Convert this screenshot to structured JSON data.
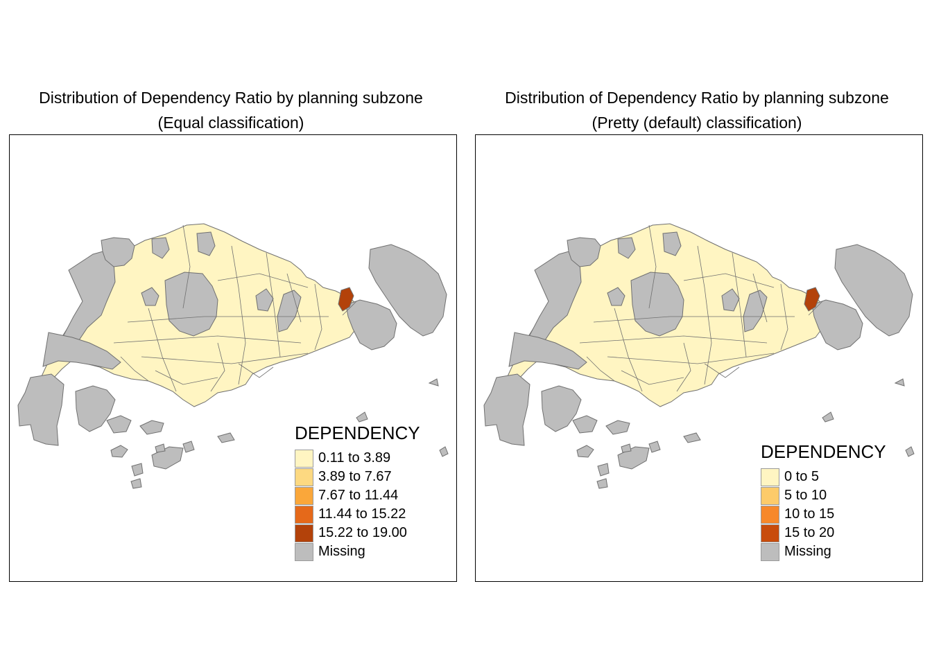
{
  "panels": [
    {
      "title_line1": "Distribution of Dependency Ratio by planning subzone",
      "title_line2": "(Equal classification)",
      "legend": {
        "title": "DEPENDENCY",
        "items": [
          {
            "label": "0.11 to 3.89",
            "color": "#fff5c2"
          },
          {
            "label": "3.89 to 7.67",
            "color": "#fdd981"
          },
          {
            "label": "7.67 to 11.44",
            "color": "#faa73a"
          },
          {
            "label": "11.44 to 15.22",
            "color": "#e5691a"
          },
          {
            "label": "15.22 to 19.00",
            "color": "#b3420a"
          },
          {
            "label": "Missing",
            "color": "#bdbdbd"
          }
        ]
      }
    },
    {
      "title_line1": "Distribution of Dependency Ratio by planning subzone",
      "title_line2": "(Pretty (default) classification)",
      "legend": {
        "title": "DEPENDENCY",
        "items": [
          {
            "label": "0 to 5",
            "color": "#fff5c2"
          },
          {
            "label": "5 to 10",
            "color": "#fdcb6a"
          },
          {
            "label": "10 to 15",
            "color": "#f7882a"
          },
          {
            "label": "15 to 20",
            "color": "#c84c0c"
          },
          {
            "label": "Missing",
            "color": "#bdbdbd"
          }
        ]
      }
    }
  ],
  "map_colors": {
    "missing": "#bdbdbd",
    "low": "#fff5c2",
    "high": "#b3420a",
    "border": "#6f6f6f"
  }
}
